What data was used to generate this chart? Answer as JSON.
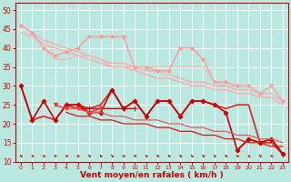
{
  "background_color": "#b8e8e0",
  "grid_color": "#ffffff",
  "xlabel": "Vent moyen/en rafales ( km/h )",
  "xlabel_color": "#cc0000",
  "xlabel_fontsize": 6.5,
  "tick_color": "#cc0000",
  "ylim": [
    10,
    52
  ],
  "xlim": [
    -0.5,
    23.5
  ],
  "yticks": [
    10,
    15,
    20,
    25,
    30,
    35,
    40,
    45,
    50
  ],
  "xticks": [
    0,
    1,
    2,
    3,
    4,
    5,
    6,
    7,
    8,
    9,
    10,
    11,
    12,
    13,
    14,
    15,
    16,
    17,
    18,
    19,
    20,
    21,
    22,
    23
  ],
  "arrow_color": "#cc2200",
  "series": [
    {
      "color": "#ffaaaa",
      "lw": 1.0,
      "marker": null,
      "ms": 0,
      "y": [
        46,
        44,
        42,
        41,
        40,
        39,
        38,
        37,
        36,
        36,
        35,
        34,
        34,
        33,
        32,
        31,
        31,
        30,
        30,
        29,
        29,
        28,
        28,
        26
      ]
    },
    {
      "color": "#ffaaaa",
      "lw": 1.0,
      "marker": null,
      "ms": 0,
      "y": [
        44,
        43,
        41,
        40,
        39,
        38,
        37,
        36,
        35,
        35,
        34,
        33,
        32,
        32,
        31,
        30,
        30,
        29,
        29,
        28,
        28,
        27,
        27,
        25
      ]
    },
    {
      "color": "#ff9999",
      "lw": 1.0,
      "marker": "D",
      "ms": 2,
      "y": [
        46,
        44,
        40,
        38,
        39,
        40,
        43,
        43,
        43,
        43,
        35,
        35,
        34,
        34,
        40,
        40,
        37,
        31,
        31,
        30,
        30,
        28,
        30,
        26
      ]
    },
    {
      "color": "#ffaaaa",
      "lw": 0.8,
      "marker": null,
      "ms": 0,
      "y": [
        null,
        null,
        40,
        37,
        37,
        38,
        38,
        37,
        35,
        35,
        35,
        35,
        35,
        35,
        35,
        35,
        35,
        31,
        30,
        30,
        30,
        28,
        30,
        26
      ]
    },
    {
      "color": "#dd2222",
      "lw": 1.2,
      "marker": null,
      "ms": 0,
      "y": [
        30,
        21,
        22,
        21,
        25,
        24,
        24,
        25,
        29,
        24,
        26,
        22,
        26,
        26,
        22,
        26,
        26,
        25,
        24,
        25,
        25,
        15,
        15,
        12
      ]
    },
    {
      "color": "#cc0000",
      "lw": 1.2,
      "marker": "D",
      "ms": 2.5,
      "y": [
        30,
        21,
        26,
        21,
        25,
        25,
        23,
        23,
        29,
        24,
        26,
        22,
        26,
        26,
        22,
        26,
        26,
        25,
        23,
        13,
        16,
        15,
        16,
        12
      ]
    },
    {
      "color": "#cc0000",
      "lw": 1.0,
      "marker": "+",
      "ms": 4,
      "y": [
        null,
        null,
        null,
        null,
        25,
        25,
        24,
        24,
        null,
        24,
        24,
        null,
        null,
        null,
        null,
        null,
        null,
        null,
        null,
        null,
        null,
        null,
        null,
        null
      ]
    },
    {
      "color": "#ee3333",
      "lw": 1.0,
      "marker": "v",
      "ms": 3,
      "y": [
        null,
        null,
        null,
        25,
        24,
        24,
        23,
        24,
        null,
        null,
        null,
        null,
        null,
        null,
        null,
        null,
        null,
        null,
        null,
        null,
        null,
        null,
        null,
        null
      ]
    },
    {
      "color": "#cc0000",
      "lw": 1.0,
      "marker": null,
      "ms": 0,
      "y": [
        null,
        null,
        null,
        null,
        null,
        null,
        null,
        null,
        null,
        null,
        null,
        null,
        null,
        null,
        null,
        null,
        null,
        null,
        null,
        null,
        null,
        null,
        null,
        null
      ]
    },
    {
      "color": "#cc0000",
      "lw": 1.0,
      "marker": "D",
      "ms": 2,
      "y": [
        null,
        null,
        null,
        null,
        null,
        null,
        null,
        null,
        null,
        null,
        null,
        null,
        null,
        null,
        null,
        null,
        null,
        null,
        null,
        13,
        16,
        15,
        16,
        12
      ]
    },
    {
      "color": "#dd1111",
      "lw": 0.9,
      "marker": null,
      "ms": 0,
      "y": [
        null,
        null,
        null,
        null,
        23,
        22,
        22,
        21,
        21,
        20,
        20,
        20,
        19,
        19,
        18,
        18,
        17,
        17,
        16,
        16,
        15,
        15,
        14,
        14
      ]
    },
    {
      "color": "#ee5555",
      "lw": 0.9,
      "marker": null,
      "ms": 0,
      "y": [
        null,
        null,
        null,
        null,
        24,
        24,
        23,
        23,
        22,
        22,
        21,
        21,
        21,
        20,
        20,
        19,
        19,
        18,
        18,
        17,
        17,
        16,
        16,
        15
      ]
    }
  ]
}
